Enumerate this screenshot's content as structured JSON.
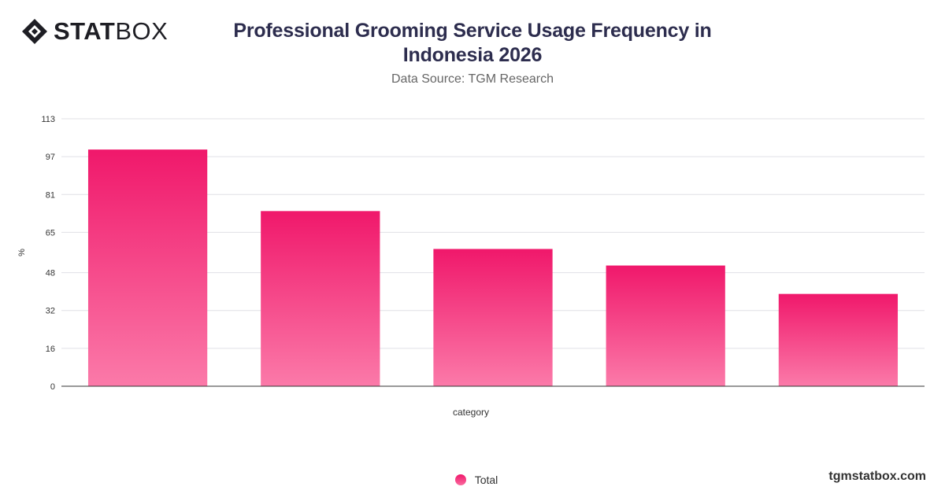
{
  "brand": {
    "logo_bold": "STAT",
    "logo_light": "BOX",
    "logo_icon": "diamond-logo-icon",
    "site": "tgmstatbox.com"
  },
  "header": {
    "title": "Professional Grooming Service Usage Frequency in Indonesia 2026",
    "subtitle": "Data Source: TGM Research"
  },
  "chart_data": {
    "type": "bar",
    "title": "Professional Grooming Service Usage Frequency in Indonesia 2026",
    "subtitle": "Data Source: TGM Research",
    "xlabel": "category",
    "ylabel": "%",
    "ylim": [
      0,
      113
    ],
    "yticks": [
      "0",
      "16",
      "32",
      "48",
      "65",
      "81",
      "97",
      "113"
    ],
    "categories": [
      "",
      "",
      "",
      "",
      ""
    ],
    "series": [
      {
        "name": "Total",
        "values": [
          100,
          74,
          58,
          51,
          39
        ]
      }
    ],
    "grid": true,
    "legend": "bottom-center",
    "colors": {
      "bar_top": "#f0186b",
      "bar_bottom": "#fb7aa9",
      "grid": "#e0e0e6",
      "axis": "#333333"
    }
  },
  "legend": {
    "items": [
      {
        "label": "Total"
      }
    ]
  }
}
